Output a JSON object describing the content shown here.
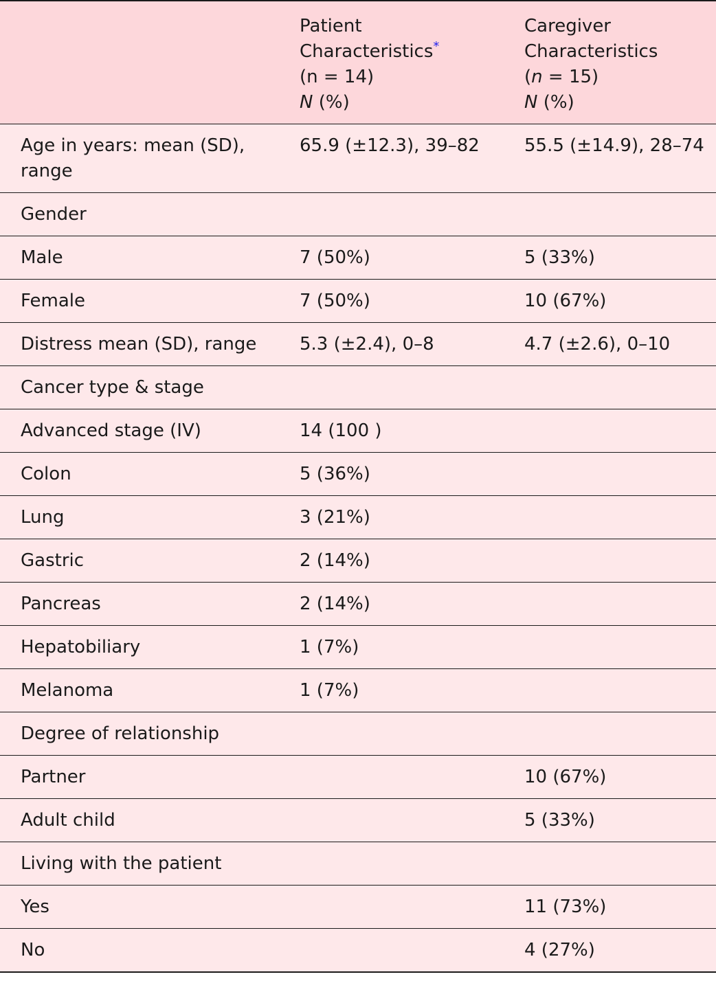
{
  "table": {
    "header": {
      "col1": "",
      "patient": {
        "line1": "Patient",
        "line2": "Characteristics",
        "footnote_mark": "*",
        "n_label": "(n = 14)",
        "n_prefix": "(",
        "n_letter": "n",
        "n_rest": " = 14)",
        "unit_letter": "N",
        "unit_rest": " (%)"
      },
      "caregiver": {
        "line1": "Caregiver",
        "line2": "Characteristics",
        "n_prefix": "(",
        "n_letter": "n",
        "n_rest": " = 15)",
        "unit_letter": "N",
        "unit_rest": " (%)"
      }
    },
    "rows": [
      {
        "label": "Age in years: mean (SD), range",
        "patient": "65.9 (±12.3), 39–82",
        "caregiver": "55.5 (±14.9), 28–74"
      },
      {
        "label": "Gender",
        "patient": "",
        "caregiver": ""
      },
      {
        "label": "Male",
        "patient": "7 (50%)",
        "caregiver": "5 (33%)"
      },
      {
        "label": "Female",
        "patient": "7 (50%)",
        "caregiver": "10 (67%)"
      },
      {
        "label": "Distress mean (SD), range",
        "patient": "5.3 (±2.4), 0–8",
        "caregiver": "4.7 (±2.6), 0–10"
      },
      {
        "label": "Cancer type & stage",
        "patient": "",
        "caregiver": ""
      },
      {
        "label": "Advanced stage (IV)",
        "patient": "14 (100 )",
        "caregiver": ""
      },
      {
        "label": "Colon",
        "patient": "5 (36%)",
        "caregiver": ""
      },
      {
        "label": "Lung",
        "patient": "3 (21%)",
        "caregiver": ""
      },
      {
        "label": "Gastric",
        "patient": "2 (14%)",
        "caregiver": ""
      },
      {
        "label": "Pancreas",
        "patient": "2 (14%)",
        "caregiver": ""
      },
      {
        "label": "Hepatobiliary",
        "patient": "1 (7%)",
        "caregiver": ""
      },
      {
        "label": "Melanoma",
        "patient": "1 (7%)",
        "caregiver": ""
      },
      {
        "label": "Degree of relationship",
        "patient": "",
        "caregiver": ""
      },
      {
        "label": "Partner",
        "patient": "",
        "caregiver": "10 (67%)"
      },
      {
        "label": "Adult child",
        "patient": "",
        "caregiver": "5 (33%)"
      },
      {
        "label": "Living with the patient",
        "patient": "",
        "caregiver": ""
      },
      {
        "label": "Yes",
        "patient": "",
        "caregiver": "11 (73%)"
      },
      {
        "label": "No",
        "patient": "",
        "caregiver": "4 (27%)"
      }
    ]
  },
  "colors": {
    "header_bg": "#fdd7db",
    "row_bg": "#fee8ea",
    "footnote_mark": "#2222ee"
  }
}
